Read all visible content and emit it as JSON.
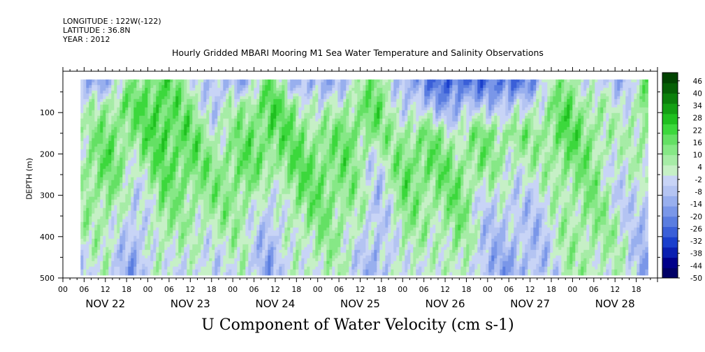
{
  "header": {
    "longitude": "LONGITUDE : 122W(-122)",
    "latitude": "LATITUDE : 36.8N",
    "year": "YEAR : 2012"
  },
  "chart_data": {
    "type": "heatmap",
    "title": "Hourly Gridded MBARI Mooring M1 Sea Water Temperature and Salinity Observations",
    "subtitle": "U Component of Water Velocity (cm s-1)",
    "ylabel": "DEPTH (m)",
    "ylim": [
      500,
      0
    ],
    "y_ticks": [
      100,
      200,
      300,
      400,
      500
    ],
    "x_hour_ticks": [
      "00",
      "06",
      "12",
      "18",
      "00",
      "06",
      "12",
      "18",
      "00",
      "06",
      "12",
      "18",
      "00",
      "06",
      "12",
      "18",
      "00",
      "06",
      "12",
      "18",
      "00",
      "06",
      "12",
      "18",
      "00",
      "06",
      "12",
      "18"
    ],
    "x_day_labels": [
      "NOV 22",
      "NOV 23",
      "NOV 24",
      "NOV 25",
      "NOV 26",
      "NOV 27",
      "NOV 28"
    ],
    "x_range_hours": [
      0,
      168
    ],
    "data_extent": {
      "x_hours": [
        5,
        165
      ],
      "depth_m": [
        20,
        490
      ]
    },
    "colorbar": {
      "labels": [
        "46",
        "40",
        "34",
        "28",
        "22",
        "16",
        "10",
        "4",
        "-2",
        "-8",
        "-14",
        "-20",
        "-26",
        "-32",
        "-38",
        "-44",
        "-50"
      ],
      "min": -50,
      "max": 50,
      "colors": [
        "#000066",
        "#00008a",
        "#0a1fb0",
        "#1a3fcc",
        "#3a5fd8",
        "#5a7de0",
        "#7a97e8",
        "#98afee",
        "#b4c4f2",
        "#c8d4f6",
        "#c6f0c6",
        "#a6eca6",
        "#86e886",
        "#64e064",
        "#3cd83c",
        "#20c020",
        "#14a014",
        "#0c800c",
        "#066006",
        "#024402"
      ]
    },
    "field": {
      "depths_m": [
        30,
        80,
        150,
        230,
        310,
        390,
        470
      ],
      "rows": [
        [
          -14,
          -8,
          10,
          20,
          4,
          -8,
          -10,
          14,
          -8,
          -14,
          -2,
          16,
          -12,
          -20,
          -26,
          -20,
          -26,
          -8,
          14,
          -4,
          -8,
          10
        ],
        [
          -4,
          10,
          16,
          22,
          10,
          -6,
          8,
          20,
          10,
          -4,
          10,
          16,
          -4,
          -10,
          -14,
          -6,
          -10,
          4,
          16,
          8,
          -4,
          16
        ],
        [
          4,
          14,
          12,
          22,
          16,
          4,
          12,
          18,
          14,
          10,
          16,
          10,
          10,
          12,
          4,
          14,
          10,
          10,
          18,
          12,
          2,
          10
        ],
        [
          10,
          16,
          4,
          16,
          18,
          10,
          16,
          10,
          16,
          16,
          12,
          -4,
          16,
          16,
          12,
          10,
          4,
          4,
          14,
          10,
          -2,
          6
        ],
        [
          8,
          12,
          -6,
          12,
          10,
          10,
          12,
          -6,
          12,
          14,
          10,
          -6,
          12,
          10,
          14,
          -2,
          -4,
          -4,
          8,
          12,
          -2,
          -8
        ],
        [
          2,
          6,
          -10,
          8,
          4,
          4,
          6,
          -10,
          6,
          10,
          6,
          -10,
          8,
          4,
          12,
          -6,
          -8,
          -6,
          6,
          10,
          4,
          -10
        ],
        [
          -4,
          2,
          -14,
          4,
          -2,
          -2,
          2,
          -12,
          0,
          6,
          0,
          -12,
          4,
          -2,
          8,
          -10,
          -12,
          -8,
          4,
          6,
          2,
          -12
        ]
      ]
    }
  }
}
